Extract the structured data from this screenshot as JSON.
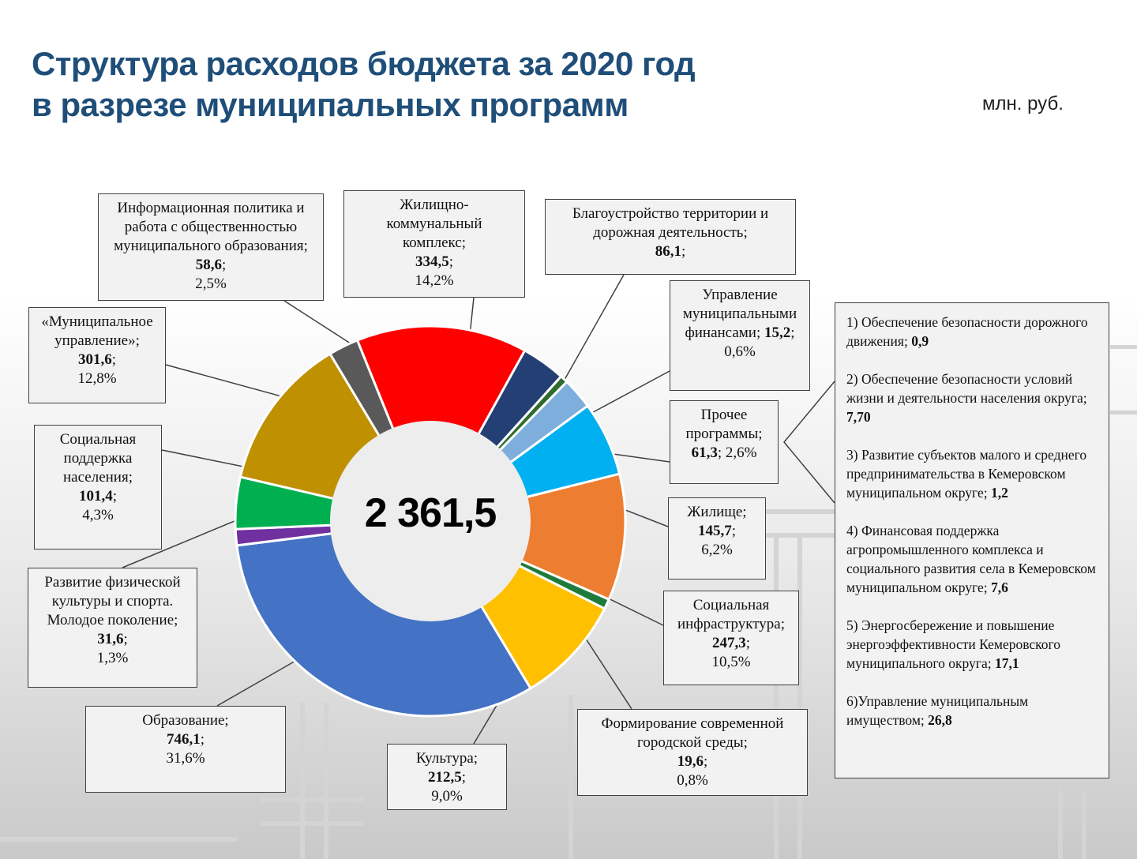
{
  "header": {
    "title_line1": "Структура расходов бюджета за 2020 год",
    "title_line2": "в разрезе муниципальных программ",
    "unit": "млн. руб."
  },
  "chart_data": {
    "type": "pie",
    "total": "2 361,5",
    "slices": [
      {
        "label_lines": [
          "Жилищно-",
          "коммунальный",
          "комплекс;"
        ],
        "value": 334.5,
        "value_text": "334,5",
        "percent_text": "14,2%",
        "color": "#ff0000"
      },
      {
        "label_lines": [
          "Благоустройство территории и",
          "дорожная деятельность;"
        ],
        "value": 86.1,
        "value_text": "86,1",
        "percent_text": "",
        "color": "#243f73"
      },
      {
        "label_lines": [
          "Управление",
          "муниципальными",
          "финансами;"
        ],
        "value": 15.2,
        "value_text": "15,2",
        "percent_text": "0,6%",
        "color": "#2e6b2e"
      },
      {
        "label_lines": [
          "Прочее",
          "программы;"
        ],
        "value": 61.3,
        "value_text": "61,3",
        "percent_text": "2,6%",
        "color": "#7eaedc"
      },
      {
        "label_lines": [
          "Жилище;"
        ],
        "value": 145.7,
        "value_text": "145,7",
        "percent_text": "6,2%",
        "color": "#00b0f0"
      },
      {
        "label_lines": [
          "Социальная",
          "инфраструктура;"
        ],
        "value": 247.3,
        "value_text": "247,3",
        "percent_text": "10,5%",
        "color": "#ed7d31"
      },
      {
        "label_lines": [
          "Формирование современной",
          "городской среды;"
        ],
        "value": 19.6,
        "value_text": "19,6",
        "percent_text": "0,8%",
        "color": "#1e7b3c"
      },
      {
        "label_lines": [
          "Культура;"
        ],
        "value": 212.5,
        "value_text": "212,5",
        "percent_text": "9,0%",
        "color": "#ffc000"
      },
      {
        "label_lines": [
          "Образование;"
        ],
        "value": 746.1,
        "value_text": "746,1",
        "percent_text": "31,6%",
        "color": "#4472c4"
      },
      {
        "label_lines": [
          "Развитие физической",
          "культуры и спорта.",
          "Молодое поколение;"
        ],
        "value": 31.6,
        "value_text": "31,6",
        "percent_text": "1,3%",
        "color": "#7030a0"
      },
      {
        "label_lines": [
          "Социальная",
          "поддержка",
          "населения;"
        ],
        "value": 101.4,
        "value_text": "101,4",
        "percent_text": "4,3%",
        "color": "#00b050"
      },
      {
        "label_lines": [
          "«Муниципальное",
          "управление»;"
        ],
        "value": 301.6,
        "value_text": "301,6",
        "percent_text": "12,8%",
        "color": "#bf9000"
      },
      {
        "label_lines": [
          "Информационная политика и",
          "работа с общественностью",
          "муниципального образования;"
        ],
        "value": 58.6,
        "value_text": "58,6",
        "percent_text": "2,5%",
        "color": "#595959"
      }
    ]
  },
  "legend": {
    "items": [
      {
        "text": "1) Обеспечение безопасности дорожного движения;",
        "value": "0,9"
      },
      {
        "text": "2) Обеспечение безопасности условий жизни и деятельности населения округа;",
        "value": "7,70"
      },
      {
        "text": "3) Развитие субъектов малого и среднего предпринимательства в Кемеровском муниципальном округе;",
        "value": "1,2"
      },
      {
        "text": "4) Финансовая поддержка агропромышленного комплекса и социального развития села в Кемеровском муниципальном округе;",
        "value": "7,6"
      },
      {
        "text": "5) Энергосбережение и повышение энергоэффективности Кемеровского муниципального округа;",
        "value": "17,1"
      },
      {
        "text": "6)Управление муниципальным имуществом;",
        "value": "26,8"
      }
    ]
  }
}
